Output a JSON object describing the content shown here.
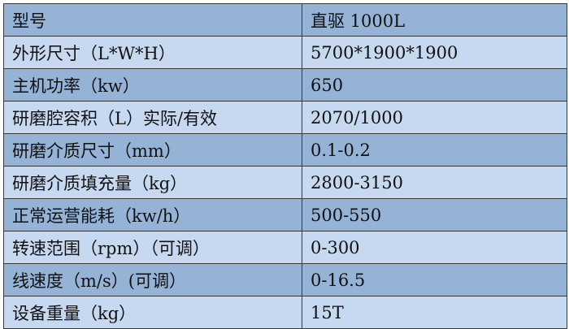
{
  "colors": {
    "dark_row": "#95b3d7",
    "light_row": "#c6d9f1"
  },
  "rows": [
    {
      "label": "型号",
      "value": "直驱 1000L"
    },
    {
      "label": "外形尺寸（L*W*H）",
      "value": "5700*1900*1900"
    },
    {
      "label": "主机功率（kw）",
      "value": "650"
    },
    {
      "label": "研磨腔容积（L）实际/有效",
      "value": "2070/1000"
    },
    {
      "label": "研磨介质尺寸（mm）",
      "value": "0.1-0.2"
    },
    {
      "label": "研磨介质填充量（kg）",
      "value": "2800-3150"
    },
    {
      "label": "正常运营能耗（kw/h）",
      "value": "500-550"
    },
    {
      "label": "转速范围（rpm）（可调）",
      "value": "0-300"
    },
    {
      "label": "线速度（m/s）(可调）",
      "value": "0-16.5"
    },
    {
      "label": "设备重量（kg）",
      "value": "15T"
    }
  ]
}
